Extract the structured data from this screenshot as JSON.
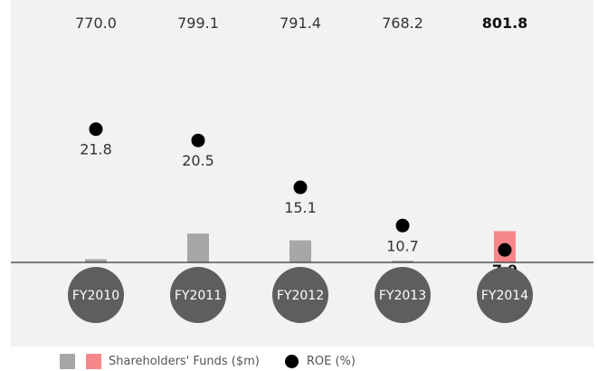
{
  "chart_data": {
    "type": "bar",
    "categories": [
      "FY2010",
      "FY2011",
      "FY2012",
      "FY2013",
      "FY2014"
    ],
    "series": [
      {
        "name": "Shareholders' Funds ($m)",
        "values": [
          770.0,
          799.1,
          791.4,
          768.2,
          801.8
        ],
        "value_labels": [
          "770.0",
          "799.1",
          "791.4",
          "768.2",
          "801.8"
        ]
      },
      {
        "name": "ROE (%)",
        "type": "scatter",
        "values": [
          21.8,
          20.5,
          15.1,
          10.7,
          7.9
        ],
        "value_labels": [
          "21.8",
          "20.5",
          "15.1",
          "10.7",
          "7.9"
        ]
      }
    ],
    "highlight_category": "FY2014",
    "grid": false,
    "legend_position": "bottom-left"
  },
  "legend": {
    "funds_label": "Shareholders' Funds ($m)",
    "roe_label": "ROE (%)"
  },
  "colors": {
    "panel_bg": "#f1f2f1",
    "bar": "#a7a6a9",
    "bar_highlight": "#f7878b",
    "roe_dot": "#000000",
    "category_circle": "#5e5d5f",
    "baseline": "#333333"
  }
}
